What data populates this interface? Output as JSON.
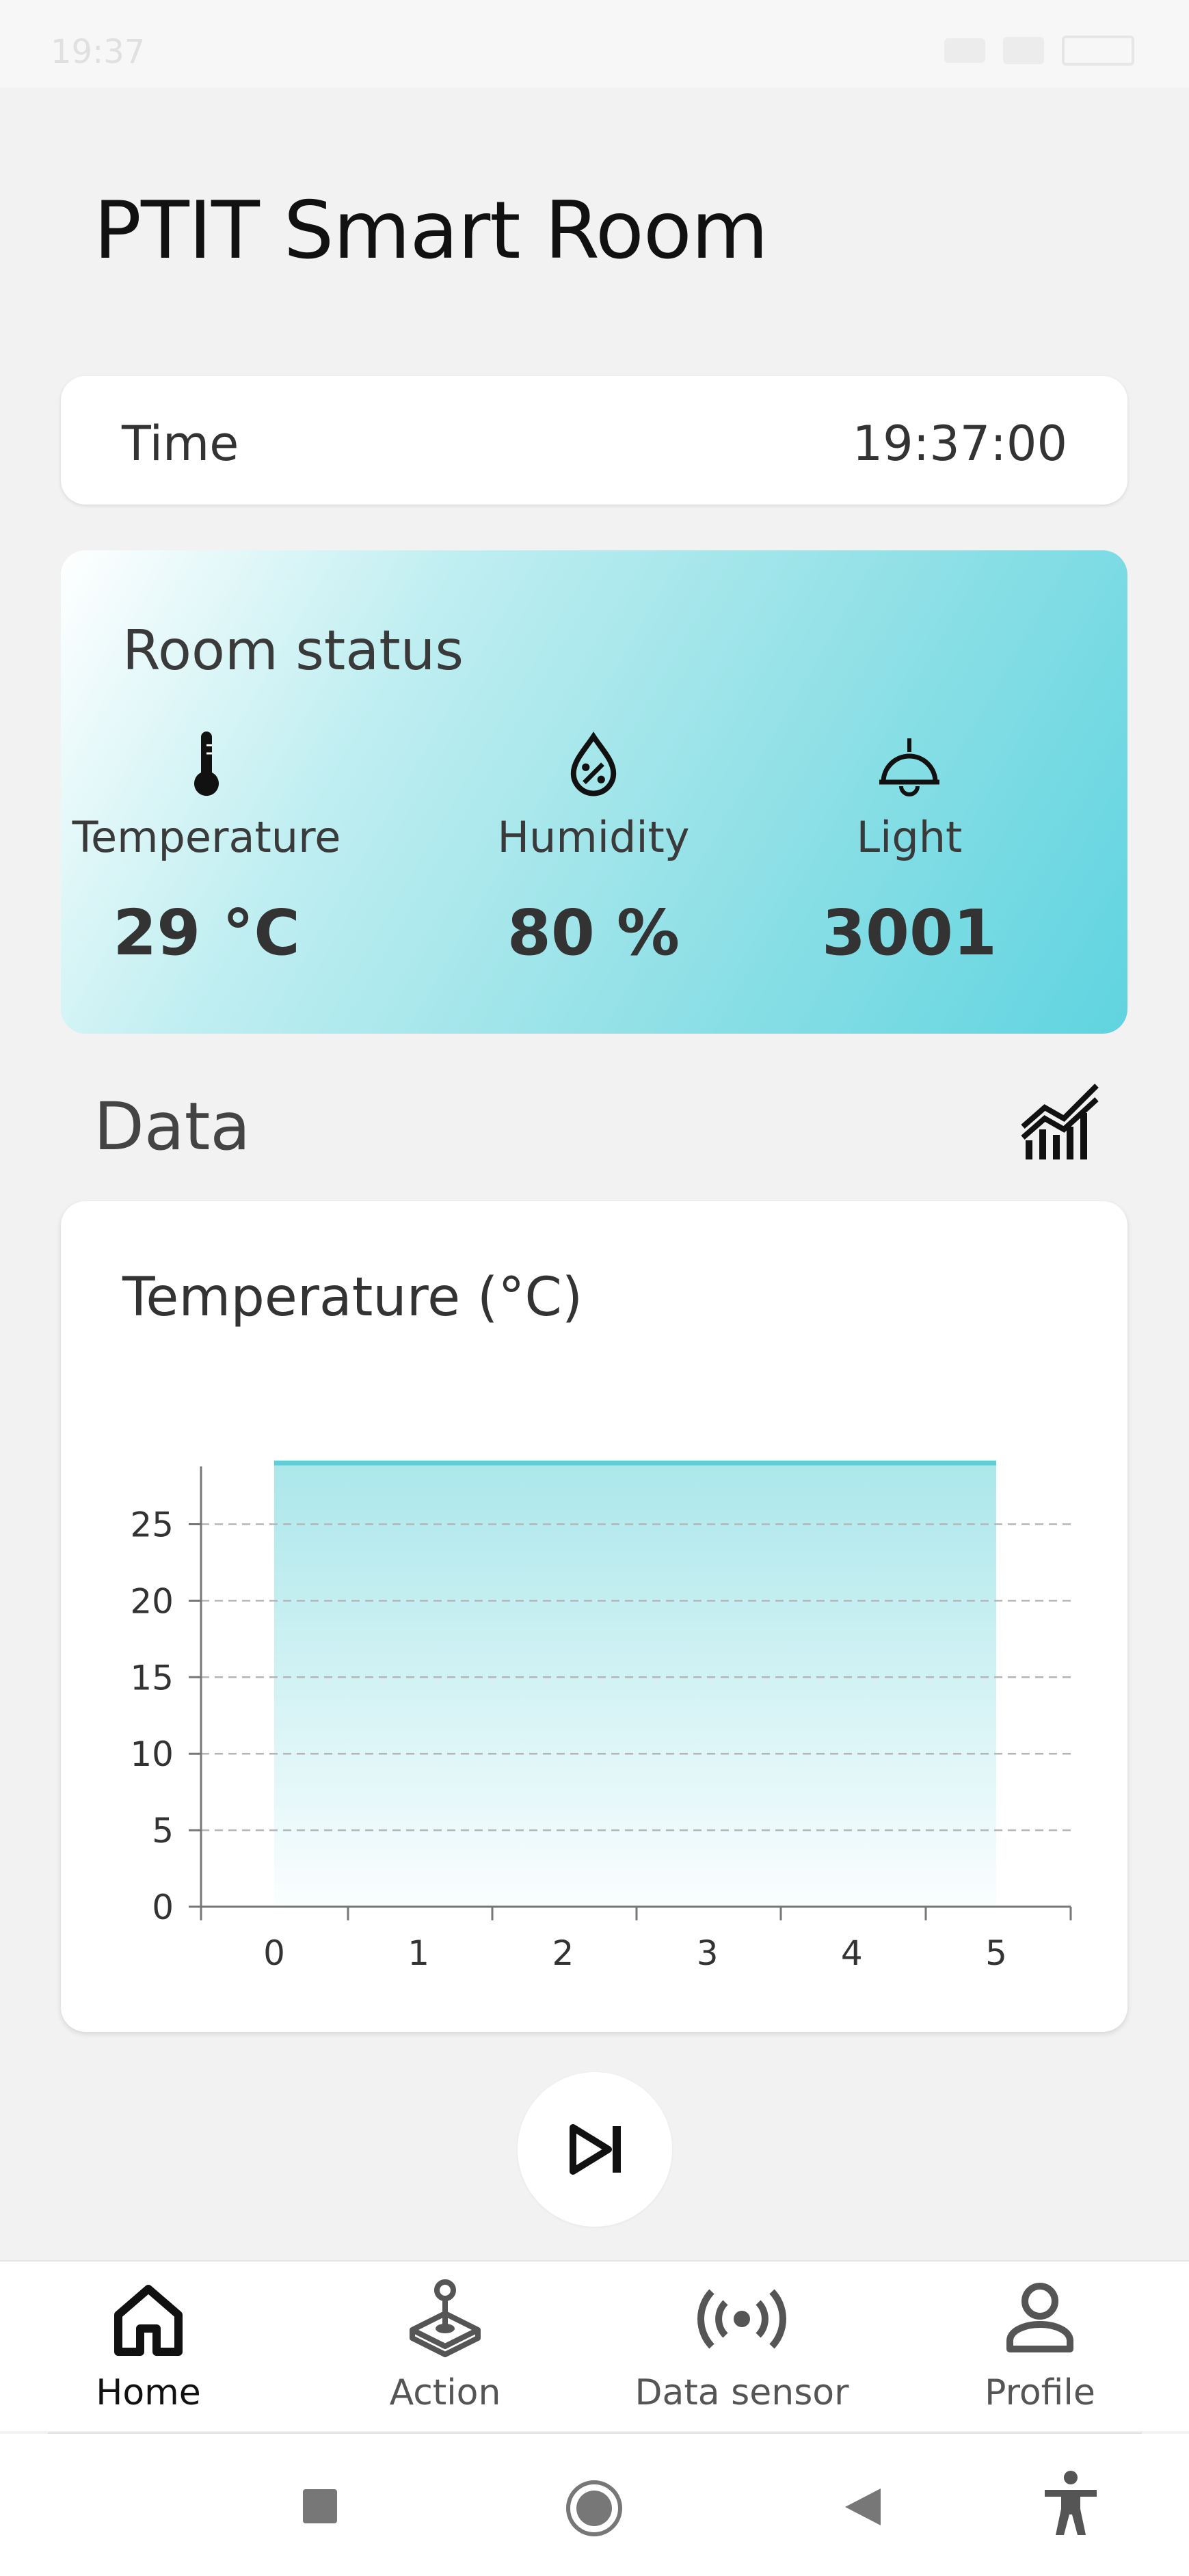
{
  "status_bar": {
    "time": "19:37"
  },
  "page_title": "PTIT Smart Room",
  "time_card": {
    "label": "Time",
    "value": "19:37:00"
  },
  "room_status": {
    "title": "Room status",
    "metrics": [
      {
        "label": "Temperature",
        "value": "29 °C",
        "icon": "thermometer-icon"
      },
      {
        "label": "Humidity",
        "value": "80 %",
        "icon": "humidity-drop-icon"
      },
      {
        "label": "Light",
        "value": "3001",
        "icon": "lamp-icon"
      }
    ]
  },
  "data_section": {
    "title": "Data",
    "icon": "bar-chart-icon"
  },
  "chart_data": {
    "type": "area",
    "title": "Temperature (°C)",
    "x": [
      0,
      1,
      2,
      3,
      4,
      5
    ],
    "values": [
      29,
      29,
      29,
      29,
      29,
      29
    ],
    "xlim": [
      0,
      5
    ],
    "ylim": [
      0,
      29
    ],
    "yticks": [
      0,
      5,
      10,
      15,
      20,
      25
    ],
    "xticks": [
      0,
      1,
      2,
      3,
      4,
      5
    ],
    "grid": true,
    "line_color": "#5ccfd8",
    "fill_color": "#8fdfe4"
  },
  "next_button": {
    "icon": "skip-next-icon"
  },
  "bottom_nav": [
    {
      "label": "Home",
      "icon": "home-icon",
      "active": true
    },
    {
      "label": "Action",
      "icon": "joystick-icon",
      "active": false
    },
    {
      "label": "Data sensor",
      "icon": "sensor-broadcast-icon",
      "active": false
    },
    {
      "label": "Profile",
      "icon": "person-icon",
      "active": false
    }
  ],
  "system_nav": [
    "recents-square-icon",
    "home-circle-icon",
    "back-triangle-icon",
    "accessibility-icon"
  ]
}
